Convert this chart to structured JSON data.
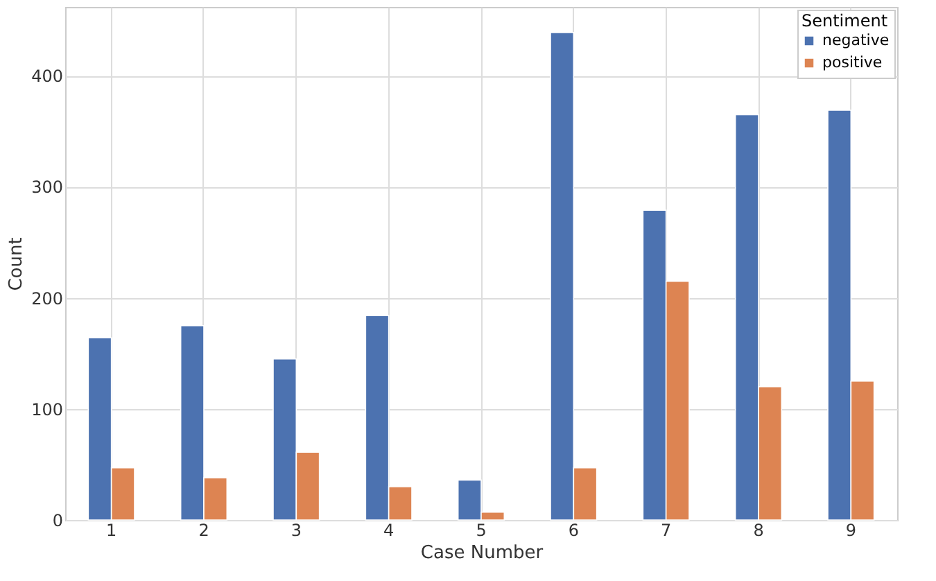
{
  "chart_data": {
    "type": "bar",
    "xlabel": "Case Number",
    "ylabel": "Count",
    "legend_title": "Sentiment",
    "categories": [
      "1",
      "2",
      "3",
      "4",
      "5",
      "6",
      "7",
      "8",
      "9"
    ],
    "series": [
      {
        "name": "negative",
        "color": "#4c72b0",
        "values": [
          164,
          175,
          145,
          184,
          36,
          439,
          279,
          365,
          369
        ]
      },
      {
        "name": "positive",
        "color": "#dd8452",
        "values": [
          47,
          38,
          61,
          30,
          7,
          47,
          215,
          120,
          125
        ]
      }
    ],
    "ylim": [
      0,
      462
    ],
    "yticks": [
      0,
      100,
      200,
      300,
      400
    ],
    "grid": true,
    "legend": "top right"
  }
}
